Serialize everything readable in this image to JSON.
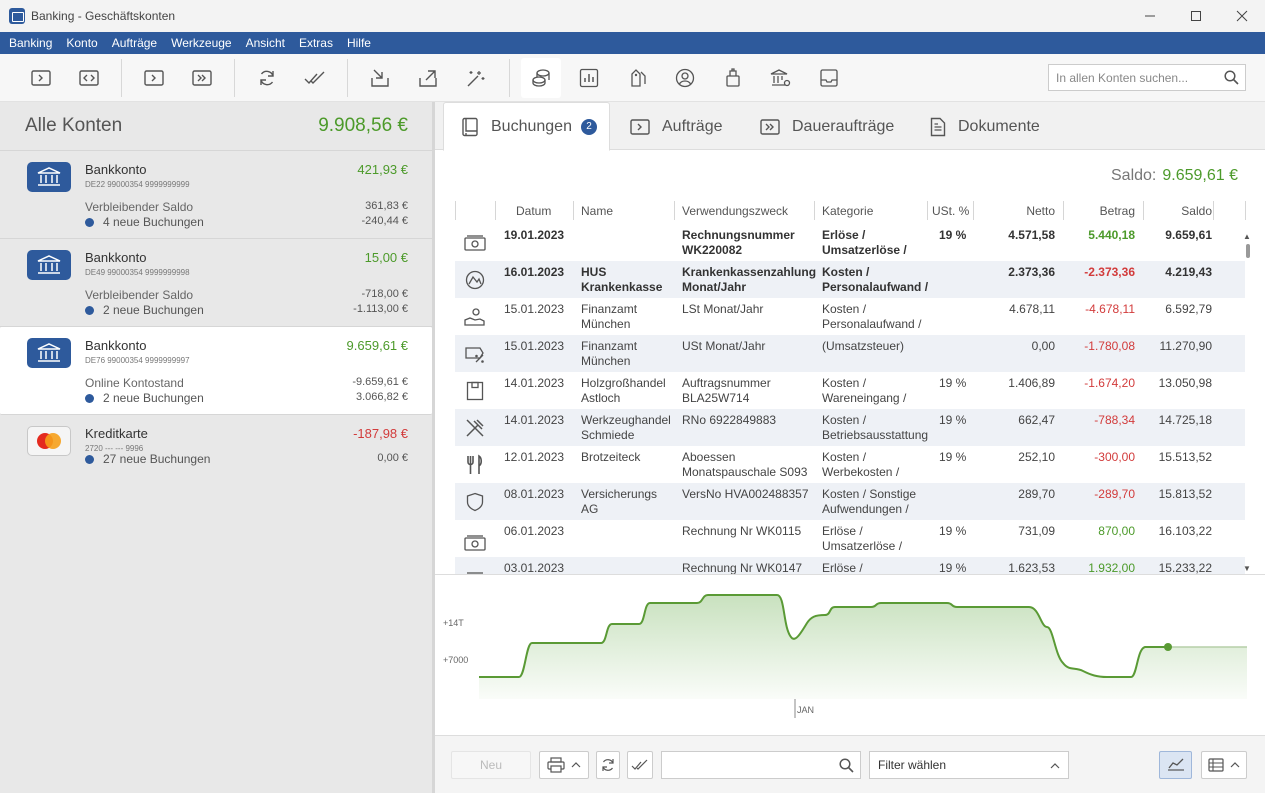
{
  "window": {
    "title": "Banking - Geschäftskonten",
    "icon": "app-icon"
  },
  "menu": [
    "Banking",
    "Konto",
    "Aufträge",
    "Werkzeuge",
    "Ansicht",
    "Extras",
    "Hilfe"
  ],
  "toolbar": {
    "buttons": [
      "transfer-icon",
      "code-transfer-icon",
      "order-icon",
      "standing-order-icon",
      "refresh-icon",
      "double-check-icon",
      "import-icon",
      "export-icon",
      "magic-wand-icon",
      "coins-icon",
      "bar-chart-icon",
      "tags-icon",
      "user-icon",
      "upload-icon",
      "bank-settings-icon",
      "inbox-icon"
    ],
    "search_placeholder": "In allen Konten suchen..."
  },
  "accounts_panel": {
    "title": "Alle Konten",
    "total": "9.908,56 €",
    "accounts": [
      {
        "name": "Bankkonto",
        "iban": "DE22 99000354 9999999999",
        "balance": "421,93 €",
        "balance_color": "#4c9a2a",
        "line3_label": "Verbleibender Saldo",
        "line3_value": "361,83 €",
        "line4_label": "4 neue Buchungen",
        "line4_value": "-240,44 €",
        "icon": "bank-icon"
      },
      {
        "name": "Bankkonto",
        "iban": "DE49 99000354 9999999998",
        "balance": "15,00 €",
        "balance_color": "#4c9a2a",
        "line3_label": "Verbleibender Saldo",
        "line3_value": "-718,00 €",
        "line4_label": "2 neue Buchungen",
        "line4_value": "-1.113,00 €",
        "icon": "bank-icon"
      },
      {
        "name": "Bankkonto",
        "iban": "DE76 99000354 9999999997",
        "balance": "9.659,61 €",
        "balance_color": "#4c9a2a",
        "line3_label": "Online Kontostand",
        "line3_value": "-9.659,61 €",
        "line4_label": "2 neue Buchungen",
        "line4_value": "3.066,82 €",
        "icon": "bank-icon",
        "selected": true
      },
      {
        "name": "Kreditkarte",
        "iban": "2720 --- --- 9996",
        "balance": "-187,98 €",
        "balance_color": "#d23b3b",
        "line3_label": "",
        "line3_value": "",
        "line4_label": "27 neue Buchungen",
        "line4_value": "0,00 €",
        "icon": "mastercard-icon"
      }
    ]
  },
  "tabs": [
    {
      "label": "Buchungen",
      "badge": "2",
      "icon": "book-icon",
      "active": true
    },
    {
      "label": "Aufträge",
      "icon": "order-icon"
    },
    {
      "label": "Daueraufträge",
      "icon": "standing-order-icon"
    },
    {
      "label": "Dokumente",
      "icon": "document-icon"
    }
  ],
  "saldo": {
    "label": "Saldo:",
    "value": "9.659,61 €"
  },
  "table": {
    "columns": [
      "Datum",
      "Name",
      "Verwendungszweck",
      "Kategorie",
      "USt. %",
      "Netto",
      "Betrag",
      "Saldo"
    ],
    "rows": [
      {
        "icon": "money-icon",
        "date": "19.01.2023",
        "name": "",
        "purpose": "Rechnungsnummer\nWK220082",
        "category": "Erlöse /\nUmsatzerlöse /",
        "vat": "19 %",
        "net": "4.571,58",
        "amount": "5.440,18",
        "amount_sign": "pos",
        "balance": "9.659,61",
        "bold": true
      },
      {
        "icon": "health-icon",
        "date": "16.01.2023",
        "name": "HUS\nKrankenkasse",
        "purpose": "Krankenkassenzahlung\nMonat/Jahr",
        "category": "Kosten /\nPersonalaufwand /",
        "vat": "",
        "net": "2.373,36",
        "amount": "-2.373,36",
        "amount_sign": "neg",
        "balance": "4.219,43",
        "bold": true
      },
      {
        "icon": "salary-icon",
        "date": "15.01.2023",
        "name": "Finanzamt\nMünchen",
        "purpose": "LSt Monat/Jahr",
        "category": "Kosten /\nPersonalaufwand /",
        "vat": "",
        "net": "4.678,11",
        "amount": "-4.678,11",
        "amount_sign": "neg",
        "balance": "6.592,79",
        "bold": false
      },
      {
        "icon": "tax-icon",
        "date": "15.01.2023",
        "name": "Finanzamt\nMünchen",
        "purpose": "USt Monat/Jahr",
        "category": "(Umsatzsteuer)",
        "vat": "",
        "net": "0,00",
        "amount": "-1.780,08",
        "amount_sign": "neg",
        "balance": "11.270,90",
        "bold": false
      },
      {
        "icon": "box-icon",
        "date": "14.01.2023",
        "name": "Holzgroßhandel\nAstloch",
        "purpose": "Auftragsnummer\nBLA25W714",
        "category": "Kosten /\nWareneingang /",
        "vat": "19 %",
        "net": "1.406,89",
        "amount": "-1.674,20",
        "amount_sign": "neg",
        "balance": "13.050,98",
        "bold": false
      },
      {
        "icon": "tools-icon",
        "date": "14.01.2023",
        "name": "Werkzeughandel\nSchmiede",
        "purpose": "RNo 6922849883",
        "category": "Kosten /\nBetriebsausstattung",
        "vat": "19 %",
        "net": "662,47",
        "amount": "-788,34",
        "amount_sign": "neg",
        "balance": "14.725,18",
        "bold": false
      },
      {
        "icon": "cutlery-icon",
        "date": "12.01.2023",
        "name": "Brotzeiteck",
        "purpose": "Aboessen\nMonatspauschale S093",
        "category": "Kosten /\nWerbekosten /",
        "vat": "19 %",
        "net": "252,10",
        "amount": "-300,00",
        "amount_sign": "neg",
        "balance": "15.513,52",
        "bold": false
      },
      {
        "icon": "shield-icon",
        "date": "08.01.2023",
        "name": "Versicherungs AG",
        "purpose": "VersNo HVA002488357",
        "category": "Kosten / Sonstige\nAufwendungen /",
        "vat": "",
        "net": "289,70",
        "amount": "-289,70",
        "amount_sign": "neg",
        "balance": "15.813,52",
        "bold": false
      },
      {
        "icon": "money-icon",
        "date": "06.01.2023",
        "name": "",
        "purpose": "Rechnung Nr WK0115",
        "category": "Erlöse /\nUmsatzerlöse /",
        "vat": "19 %",
        "net": "731,09",
        "amount": "870,00",
        "amount_sign": "pos",
        "balance": "16.103,22",
        "bold": false
      },
      {
        "icon": "money-icon",
        "date": "03.01.2023",
        "name": "",
        "purpose": "Rechnung Nr WK0147",
        "category": "Erlöse /",
        "vat": "19 %",
        "net": "1.623,53",
        "amount": "1.932,00",
        "amount_sign": "pos",
        "balance": "15.233,22",
        "bold": false
      }
    ]
  },
  "balance_chart": {
    "y_ticks": [
      "+14T",
      "+7000"
    ],
    "x_ticks": [
      "JAN"
    ],
    "line_color": "#5a9a35"
  },
  "bottombar": {
    "new_label": "Neu",
    "filter_label": "Filter wählen",
    "search_placeholder": ""
  }
}
